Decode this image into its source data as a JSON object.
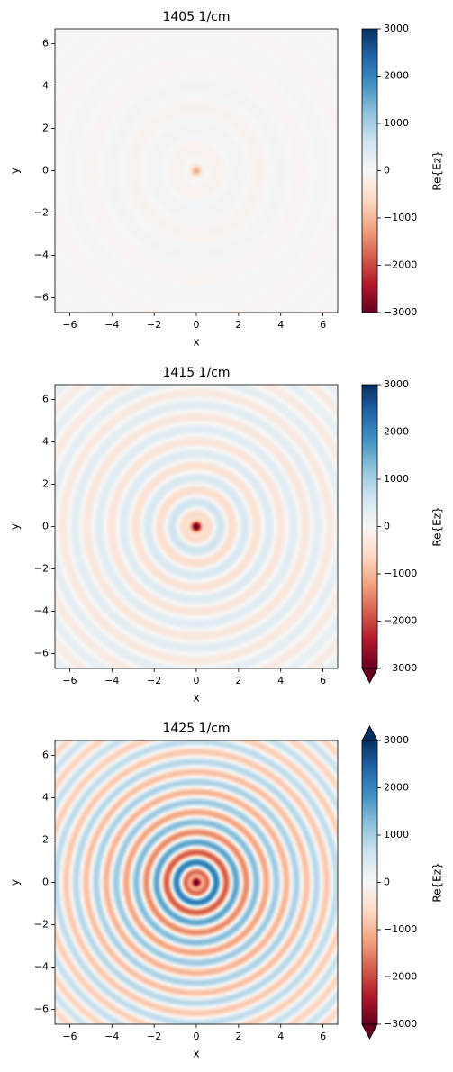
{
  "figure": {
    "colormap": "RdBu",
    "colors": {
      "cmap_low": "#67001f",
      "cmap_mid": "#f7f7f7",
      "cmap_high": "#053061",
      "axis": "#000000",
      "background": "#ffffff"
    }
  },
  "chart_data": [
    {
      "type": "heatmap",
      "title": "1405 1/cm",
      "xlabel": "x",
      "ylabel": "y",
      "xlim": [
        -6.7,
        6.7
      ],
      "ylim": [
        -6.7,
        6.7
      ],
      "xticks": [
        -6,
        -4,
        -2,
        0,
        2,
        4,
        6
      ],
      "yticks": [
        -6,
        -4,
        -2,
        0,
        2,
        4,
        6
      ],
      "xtick_labels": [
        "−6",
        "−4",
        "−2",
        "0",
        "2",
        "4",
        "6"
      ],
      "ytick_labels": [
        "−6",
        "−4",
        "−2",
        "0",
        "2",
        "4",
        "6"
      ],
      "colorbar": {
        "label": "Re{Ez}",
        "vmin": -3000,
        "vmax": 3000,
        "ticks": [
          -3000,
          -2000,
          -1000,
          0,
          1000,
          2000,
          3000
        ],
        "tick_labels": [
          "−3000",
          "−2000",
          "−1000",
          "0",
          "1000",
          "2000",
          "3000"
        ],
        "extend": "neither"
      },
      "field": {
        "description_free": true,
        "center": [
          0,
          0
        ],
        "center_value": -1200,
        "ring_amplitude": 160,
        "wavelength": 2.0,
        "decay": 0.35,
        "grid": false
      }
    },
    {
      "type": "heatmap",
      "title": "1415 1/cm",
      "xlabel": "x",
      "ylabel": "y",
      "xlim": [
        -6.7,
        6.7
      ],
      "ylim": [
        -6.7,
        6.7
      ],
      "xticks": [
        -6,
        -4,
        -2,
        0,
        2,
        4,
        6
      ],
      "yticks": [
        -6,
        -4,
        -2,
        0,
        2,
        4,
        6
      ],
      "xtick_labels": [
        "−6",
        "−4",
        "−2",
        "0",
        "2",
        "4",
        "6"
      ],
      "ytick_labels": [
        "−6",
        "−4",
        "−2",
        "0",
        "2",
        "4",
        "6"
      ],
      "colorbar": {
        "label": "Re{Ez}",
        "vmin": -3000,
        "vmax": 3000,
        "ticks": [
          -3000,
          -2000,
          -1000,
          0,
          1000,
          2000,
          3000
        ],
        "tick_labels": [
          "−3000",
          "−2000",
          "−1000",
          "0",
          "1000",
          "2000",
          "3000"
        ],
        "extend": "min"
      },
      "field": {
        "center": [
          0,
          0
        ],
        "center_value": -3500,
        "ring_amplitude": 950,
        "wavelength": 1.15,
        "decay": 0.55,
        "grid": false
      }
    },
    {
      "type": "heatmap",
      "title": "1425 1/cm",
      "xlabel": "x",
      "ylabel": "y",
      "xlim": [
        -6.7,
        6.7
      ],
      "ylim": [
        -6.7,
        6.7
      ],
      "xticks": [
        -6,
        -4,
        -2,
        0,
        2,
        4,
        6
      ],
      "yticks": [
        -6,
        -4,
        -2,
        0,
        2,
        4,
        6
      ],
      "xtick_labels": [
        "−6",
        "−4",
        "−2",
        "0",
        "2",
        "4",
        "6"
      ],
      "ytick_labels": [
        "−6",
        "−4",
        "−2",
        "0",
        "2",
        "4",
        "6"
      ],
      "colorbar": {
        "label": "Re{Ez}",
        "vmin": -3000,
        "vmax": 3000,
        "ticks": [
          -3000,
          -2000,
          -1000,
          0,
          1000,
          2000,
          3000
        ],
        "tick_labels": [
          "−3000",
          "−2000",
          "−1000",
          "0",
          "1000",
          "2000",
          "3000"
        ],
        "extend": "both"
      },
      "field": {
        "center": [
          0,
          0
        ],
        "center_value": -3500,
        "ring_amplitude": 3600,
        "wavelength": 0.95,
        "decay": 0.75,
        "grid": false
      }
    }
  ]
}
